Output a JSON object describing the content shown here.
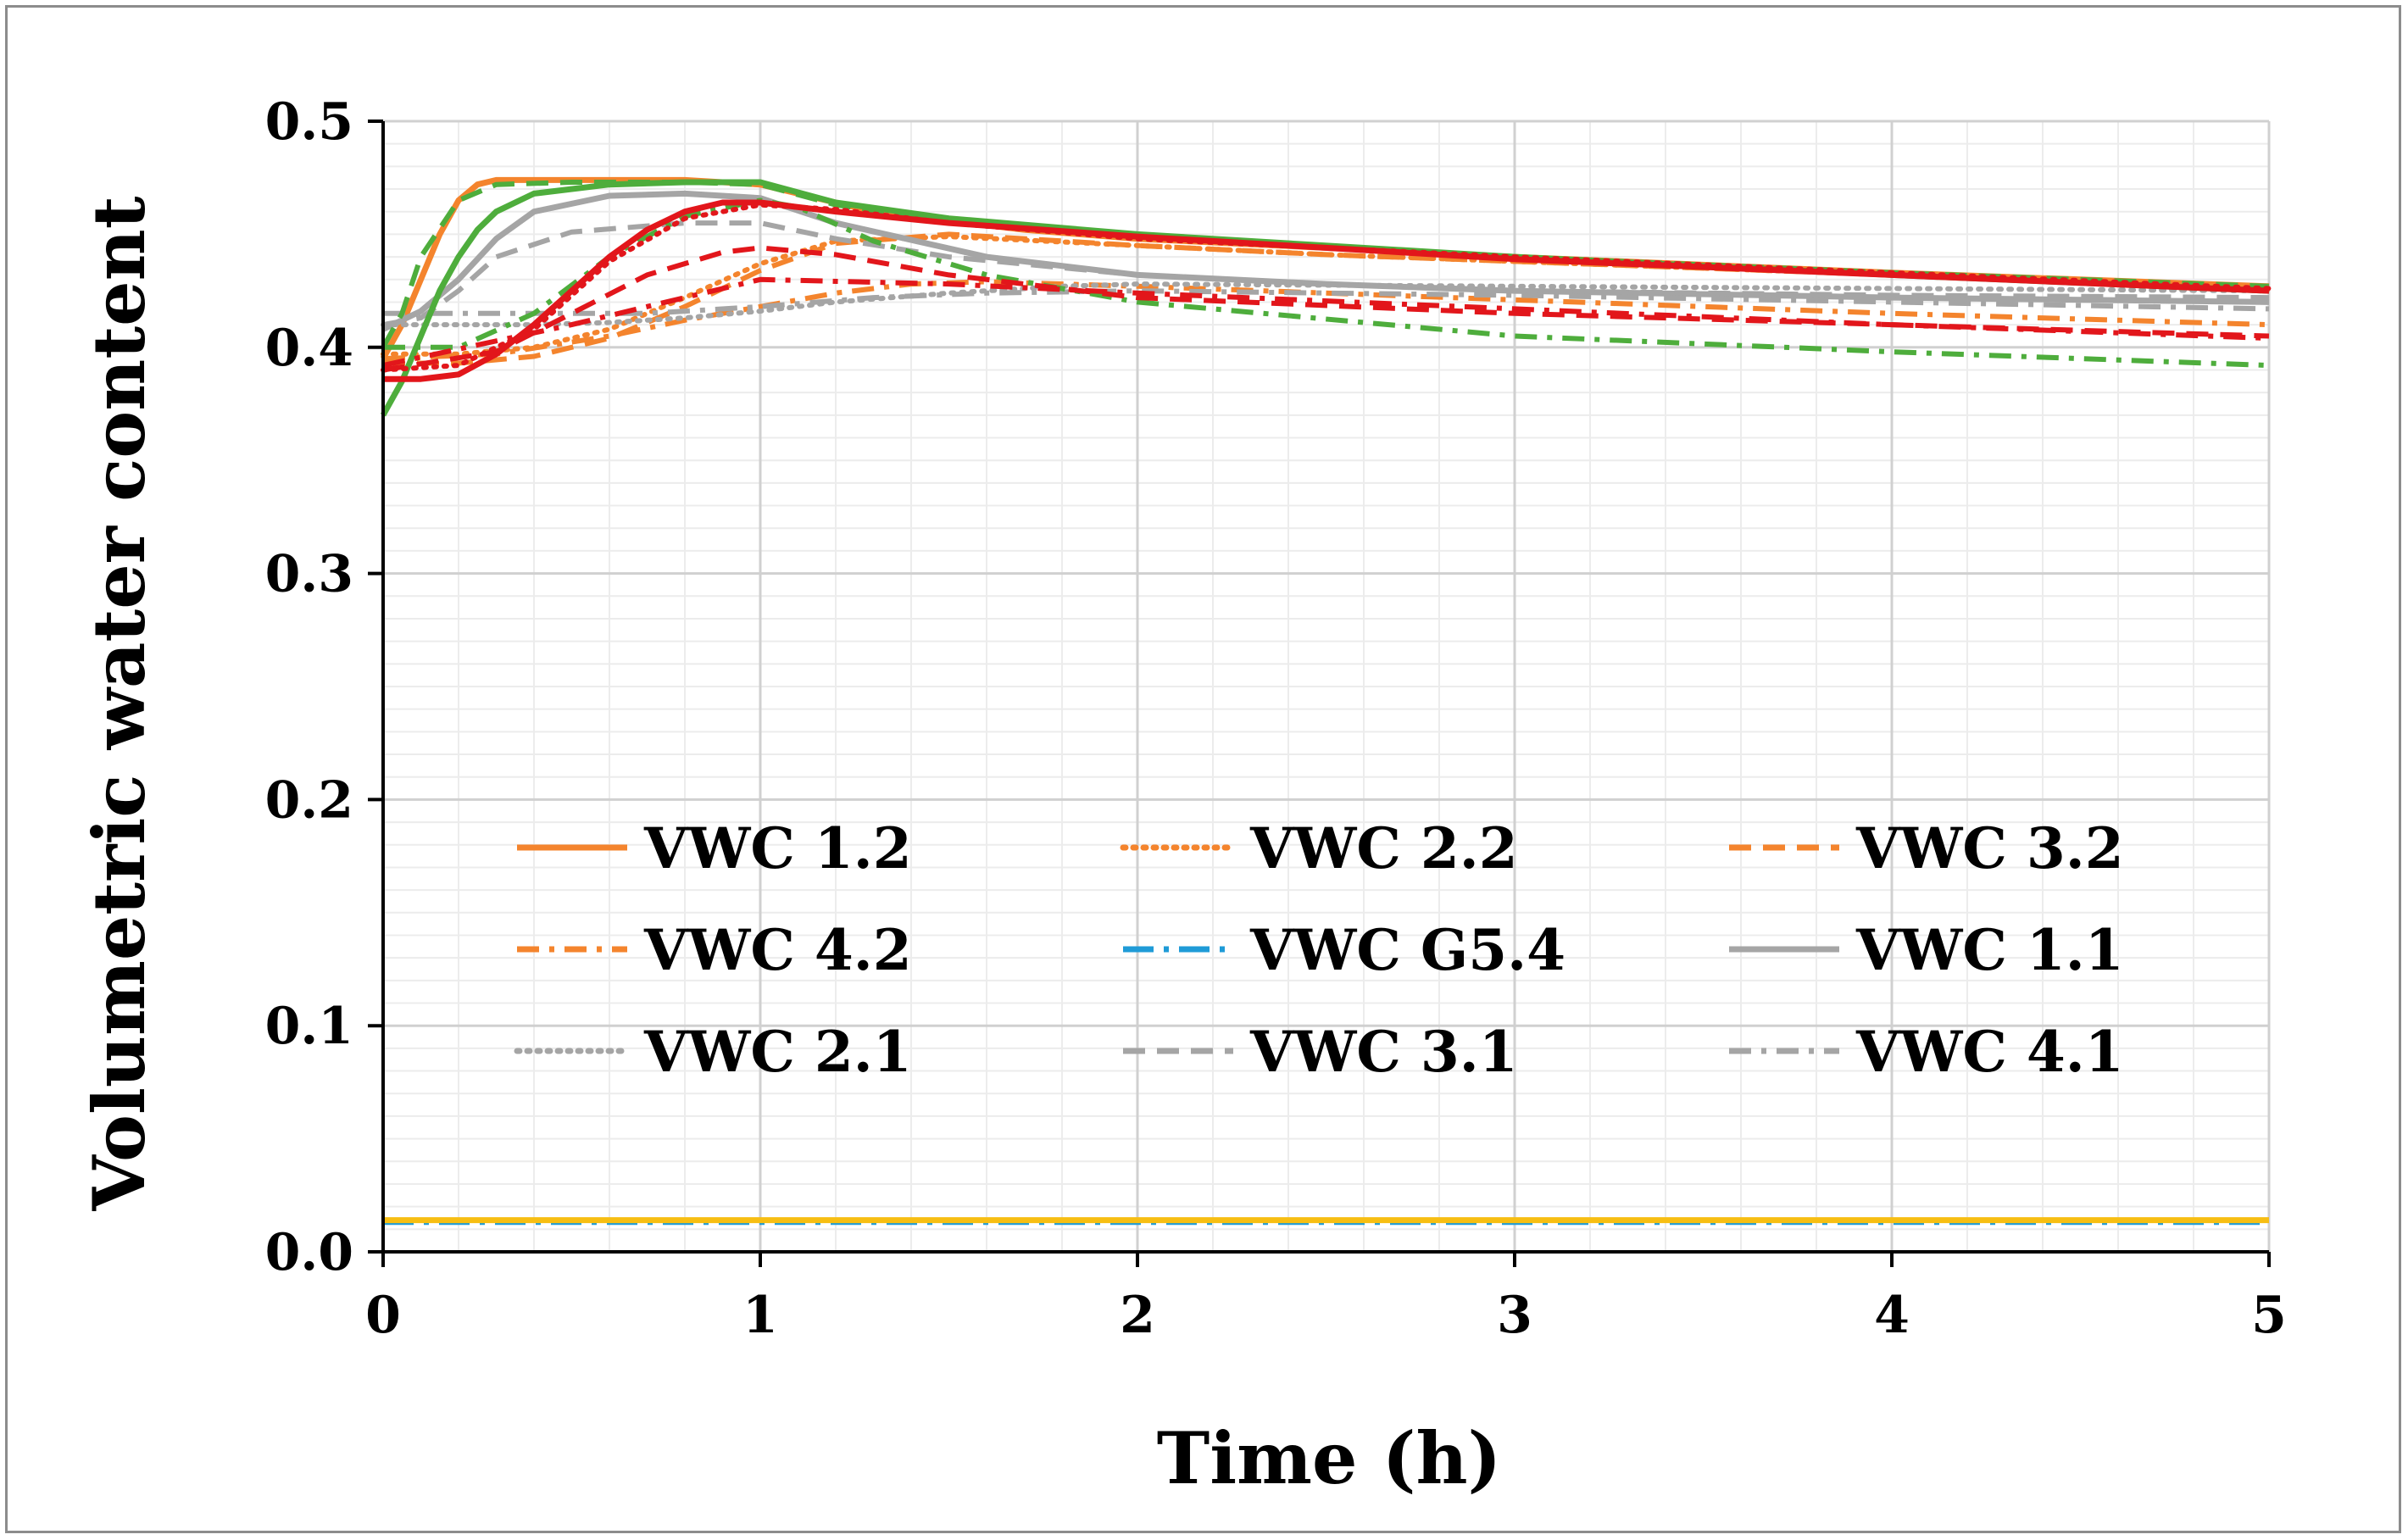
{
  "chart_data": {
    "type": "line",
    "xlabel": "Time (h)",
    "ylabel": "Volumetric water content",
    "xlim": [
      0,
      5
    ],
    "ylim": [
      0,
      0.5
    ],
    "x_ticks": [
      0,
      1,
      2,
      3,
      4,
      5
    ],
    "y_ticks": [
      0.0,
      0.1,
      0.2,
      0.3,
      0.4,
      0.5
    ],
    "x_tick_labels": [
      "0",
      "1",
      "2",
      "3",
      "4",
      "5"
    ],
    "y_tick_labels": [
      "0.0",
      "0.1",
      "0.2",
      "0.3",
      "0.4",
      "0.5"
    ],
    "grid": true,
    "legend_position": "lower-center",
    "series": [
      {
        "name": "VWC 1.2",
        "in_legend": true,
        "color": "#F4842D",
        "style": "solid",
        "x": [
          0,
          0.05,
          0.1,
          0.15,
          0.2,
          0.25,
          0.3,
          0.5,
          0.8,
          1.0,
          1.3,
          1.7,
          2,
          3,
          4,
          5
        ],
        "y": [
          0.395,
          0.41,
          0.43,
          0.45,
          0.465,
          0.472,
          0.474,
          0.474,
          0.474,
          0.472,
          0.46,
          0.452,
          0.448,
          0.44,
          0.433,
          0.427
        ]
      },
      {
        "name": "VWC 2.2",
        "in_legend": true,
        "color": "#F4842D",
        "style": "dot",
        "x": [
          0,
          0.2,
          0.4,
          0.6,
          0.8,
          1.0,
          1.2,
          1.5,
          2,
          2.5,
          3,
          4,
          5
        ],
        "y": [
          0.397,
          0.397,
          0.4,
          0.408,
          0.422,
          0.437,
          0.447,
          0.449,
          0.445,
          0.441,
          0.438,
          0.432,
          0.425
        ]
      },
      {
        "name": "VWC 3.2",
        "in_legend": true,
        "color": "#F4842D",
        "style": "dash",
        "x": [
          0,
          0.2,
          0.4,
          0.6,
          0.8,
          1.0,
          1.2,
          1.5,
          2,
          2.5,
          3,
          4,
          5
        ],
        "y": [
          0.393,
          0.393,
          0.396,
          0.404,
          0.418,
          0.434,
          0.446,
          0.45,
          0.445,
          0.441,
          0.438,
          0.432,
          0.425
        ]
      },
      {
        "name": "VWC 4.2",
        "in_legend": true,
        "color": "#F4842D",
        "style": "dashdot",
        "x": [
          0,
          0.3,
          0.6,
          0.8,
          1.0,
          1.2,
          1.4,
          1.6,
          2,
          3,
          4,
          5
        ],
        "y": [
          0.395,
          0.397,
          0.405,
          0.412,
          0.418,
          0.424,
          0.428,
          0.429,
          0.427,
          0.421,
          0.415,
          0.41
        ]
      },
      {
        "name": "VWC G5.4",
        "in_legend": true,
        "color": "#1F9BD7",
        "style": "longdashdot",
        "x": [
          0,
          5
        ],
        "y": [
          0.013,
          0.013
        ]
      },
      {
        "name": "VWC 1.1",
        "in_legend": true,
        "color": "#A5A5A5",
        "style": "solid",
        "x": [
          0,
          0.1,
          0.2,
          0.3,
          0.4,
          0.6,
          0.8,
          1.0,
          1.2,
          1.6,
          2,
          2.5,
          3,
          4,
          5
        ],
        "y": [
          0.408,
          0.416,
          0.43,
          0.448,
          0.46,
          0.467,
          0.468,
          0.466,
          0.455,
          0.44,
          0.432,
          0.428,
          0.425,
          0.422,
          0.42
        ]
      },
      {
        "name": "VWC 2.1",
        "in_legend": true,
        "color": "#A5A5A5",
        "style": "dot",
        "x": [
          0,
          0.4,
          0.6,
          0.8,
          1.0,
          1.2,
          1.5,
          1.8,
          2,
          3,
          4,
          5
        ],
        "y": [
          0.41,
          0.41,
          0.411,
          0.413,
          0.416,
          0.42,
          0.424,
          0.427,
          0.428,
          0.427,
          0.426,
          0.425
        ]
      },
      {
        "name": "VWC 3.1",
        "in_legend": true,
        "color": "#A5A5A5",
        "style": "dash",
        "x": [
          0,
          0.1,
          0.2,
          0.3,
          0.5,
          0.8,
          1.0,
          1.2,
          1.5,
          2,
          2.5,
          3,
          4,
          5
        ],
        "y": [
          0.41,
          0.413,
          0.425,
          0.44,
          0.451,
          0.455,
          0.455,
          0.448,
          0.44,
          0.432,
          0.428,
          0.425,
          0.423,
          0.422
        ]
      },
      {
        "name": "VWC 4.1",
        "in_legend": true,
        "color": "#A5A5A5",
        "style": "dashdot",
        "x": [
          0,
          0.4,
          0.7,
          1.0,
          1.3,
          1.6,
          2,
          3,
          4,
          5
        ],
        "y": [
          0.415,
          0.415,
          0.415,
          0.418,
          0.422,
          0.424,
          0.425,
          0.423,
          0.42,
          0.417
        ]
      },
      {
        "name": "Green solid",
        "in_legend": false,
        "color": "#4EAD3C",
        "style": "solid",
        "x": [
          0,
          0.05,
          0.1,
          0.15,
          0.2,
          0.25,
          0.3,
          0.4,
          0.6,
          0.8,
          1.0,
          1.2,
          1.5,
          2,
          3,
          4,
          5
        ],
        "y": [
          0.37,
          0.385,
          0.405,
          0.425,
          0.44,
          0.452,
          0.46,
          0.468,
          0.472,
          0.473,
          0.473,
          0.464,
          0.457,
          0.45,
          0.44,
          0.432,
          0.425
        ]
      },
      {
        "name": "Green dash-dot",
        "in_legend": false,
        "color": "#4EAD3C",
        "style": "dashdot",
        "x": [
          0,
          0.2,
          0.4,
          0.6,
          0.8,
          1.0,
          1.1,
          1.3,
          1.6,
          2,
          3,
          4,
          5
        ],
        "y": [
          0.4,
          0.4,
          0.415,
          0.44,
          0.458,
          0.465,
          0.462,
          0.447,
          0.432,
          0.42,
          0.405,
          0.398,
          0.392
        ]
      },
      {
        "name": "Green dash",
        "in_legend": false,
        "color": "#4EAD3C",
        "style": "dash",
        "x": [
          0,
          0.05,
          0.1,
          0.2,
          0.3,
          0.5,
          0.8,
          1.0,
          1.2,
          1.5,
          2,
          3,
          4,
          5
        ],
        "y": [
          0.4,
          0.415,
          0.44,
          0.465,
          0.472,
          0.473,
          0.473,
          0.472,
          0.463,
          0.456,
          0.45,
          0.44,
          0.433,
          0.427
        ]
      },
      {
        "name": "Red solid",
        "in_legend": false,
        "color": "#E2161B",
        "style": "solid",
        "x": [
          0,
          0.1,
          0.2,
          0.3,
          0.4,
          0.5,
          0.6,
          0.7,
          0.8,
          0.9,
          1.0,
          1.2,
          1.5,
          2,
          2.5,
          3,
          4,
          5
        ],
        "y": [
          0.386,
          0.386,
          0.388,
          0.397,
          0.41,
          0.425,
          0.44,
          0.452,
          0.46,
          0.464,
          0.464,
          0.46,
          0.455,
          0.449,
          0.444,
          0.439,
          0.432,
          0.425
        ]
      },
      {
        "name": "Red dot",
        "in_legend": false,
        "color": "#E2161B",
        "style": "dot",
        "x": [
          0,
          0.2,
          0.4,
          0.6,
          0.8,
          1.0,
          1.2,
          1.5,
          2,
          3,
          4,
          5
        ],
        "y": [
          0.39,
          0.392,
          0.408,
          0.438,
          0.457,
          0.463,
          0.461,
          0.455,
          0.448,
          0.44,
          0.433,
          0.426
        ]
      },
      {
        "name": "Red dash",
        "in_legend": false,
        "color": "#E2161B",
        "style": "dash",
        "x": [
          0,
          0.3,
          0.5,
          0.7,
          0.9,
          1.0,
          1.2,
          1.5,
          2,
          3,
          4,
          5
        ],
        "y": [
          0.39,
          0.398,
          0.415,
          0.432,
          0.442,
          0.444,
          0.441,
          0.432,
          0.422,
          0.415,
          0.41,
          0.405
        ]
      },
      {
        "name": "Red dash-dot",
        "in_legend": false,
        "color": "#E2161B",
        "style": "dashdot",
        "x": [
          0,
          0.5,
          1.0,
          1.5,
          2,
          3,
          4,
          5
        ],
        "y": [
          0.392,
          0.41,
          0.43,
          0.428,
          0.424,
          0.417,
          0.41,
          0.404
        ]
      },
      {
        "name": "Yellow baseline",
        "in_legend": false,
        "color": "#F7BE12",
        "style": "solid",
        "x": [
          0,
          5
        ],
        "y": [
          0.014,
          0.014
        ]
      }
    ]
  }
}
